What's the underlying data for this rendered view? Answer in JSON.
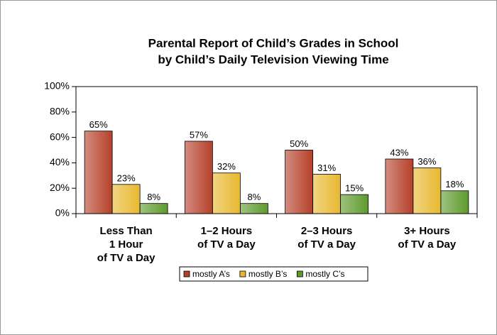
{
  "chart_data": {
    "type": "bar",
    "title": [
      "Parental Report of Child’s Grades in School",
      "by Child’s Daily Television Viewing Time"
    ],
    "categories": [
      [
        "Less Than",
        "1 Hour",
        "of TV a Day"
      ],
      [
        "1–2 Hours",
        "of TV a Day"
      ],
      [
        "2–3 Hours",
        "of TV a Day"
      ],
      [
        "3+ Hours",
        "of TV a Day"
      ]
    ],
    "series": [
      {
        "name": "mostly A’s",
        "color": "#b5402a",
        "values": [
          65,
          57,
          50,
          43
        ],
        "value_labels": [
          "65%",
          "57%",
          "50%",
          "43%"
        ]
      },
      {
        "name": "mostly B’s",
        "color": "#e8b830",
        "values": [
          23,
          32,
          31,
          36
        ],
        "value_labels": [
          "23%",
          "32%",
          "31%",
          "36%"
        ]
      },
      {
        "name": "mostly C’s",
        "color": "#5e9a2c",
        "values": [
          8,
          8,
          15,
          18
        ],
        "value_labels": [
          "8%",
          "8%",
          "15%",
          "18%"
        ]
      }
    ],
    "ylim": [
      0,
      100
    ],
    "yticks": [
      {
        "value": 0,
        "label": "0%"
      },
      {
        "value": 20,
        "label": "20%"
      },
      {
        "value": 40,
        "label": "40%"
      },
      {
        "value": 60,
        "label": "60%"
      },
      {
        "value": 80,
        "label": "80%"
      },
      {
        "value": 100,
        "label": "100%"
      }
    ],
    "legend": "bottom"
  }
}
